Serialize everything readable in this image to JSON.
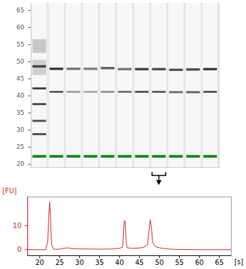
{
  "chart_data": [
    {
      "type": "gel",
      "ylim": [
        19,
        67
      ],
      "yticks": [
        20,
        25,
        30,
        35,
        40,
        45,
        50,
        55,
        60,
        65
      ],
      "color": "#222222",
      "lanes": [
        {
          "bands": [
            {
              "y1": 52.5,
              "y2": 56.5,
              "intensity": 0.22
            },
            {
              "y1": 46.0,
              "y2": 50.5,
              "intensity": 0.18
            },
            {
              "y1": 48.2,
              "y2": 48.9,
              "intensity": 0.8
            },
            {
              "y1": 41.8,
              "y2": 42.4,
              "intensity": 0.85
            },
            {
              "y1": 37.2,
              "y2": 37.8,
              "intensity": 0.8
            },
            {
              "y1": 32.3,
              "y2": 32.9,
              "intensity": 0.8
            },
            {
              "y1": 28.4,
              "y2": 29.0,
              "intensity": 0.8
            },
            {
              "y1": 21.8,
              "y2": 22.6,
              "intensity": 1,
              "color": "#1a8c1a"
            }
          ]
        },
        {
          "bands": [
            {
              "y1": 47.5,
              "y2": 48.2,
              "intensity": 0.9
            },
            {
              "y1": 40.8,
              "y2": 41.4,
              "intensity": 0.7
            },
            {
              "y1": 21.8,
              "y2": 22.6,
              "intensity": 1,
              "color": "#1a8c1a"
            }
          ]
        },
        {
          "bands": [
            {
              "y1": 47.5,
              "y2": 48.2,
              "intensity": 0.6
            },
            {
              "y1": 40.8,
              "y2": 41.4,
              "intensity": 0.4
            },
            {
              "y1": 21.8,
              "y2": 22.6,
              "intensity": 1,
              "color": "#1a8c1a"
            }
          ]
        },
        {
          "bands": [
            {
              "y1": 47.5,
              "y2": 48.2,
              "intensity": 0.55
            },
            {
              "y1": 40.8,
              "y2": 41.4,
              "intensity": 0.35
            },
            {
              "y1": 21.8,
              "y2": 22.6,
              "intensity": 1,
              "color": "#1a8c1a"
            }
          ]
        },
        {
          "bands": [
            {
              "y1": 47.7,
              "y2": 48.4,
              "intensity": 0.7
            },
            {
              "y1": 40.8,
              "y2": 41.4,
              "intensity": 0.45
            },
            {
              "y1": 21.8,
              "y2": 22.6,
              "intensity": 1,
              "color": "#1a8c1a"
            }
          ]
        },
        {
          "bands": [
            {
              "y1": 47.4,
              "y2": 48.1,
              "intensity": 0.6
            },
            {
              "y1": 40.8,
              "y2": 41.4,
              "intensity": 0.6
            },
            {
              "y1": 21.8,
              "y2": 22.6,
              "intensity": 1,
              "color": "#1a8c1a"
            }
          ]
        },
        {
          "bands": [
            {
              "y1": 47.4,
              "y2": 48.1,
              "intensity": 0.85
            },
            {
              "y1": 40.8,
              "y2": 41.4,
              "intensity": 0.75
            },
            {
              "y1": 21.8,
              "y2": 22.6,
              "intensity": 1,
              "color": "#1a8c1a"
            }
          ]
        },
        {
          "bands": [
            {
              "y1": 47.4,
              "y2": 48.1,
              "intensity": 0.8
            },
            {
              "y1": 40.8,
              "y2": 41.4,
              "intensity": 0.7
            },
            {
              "y1": 21.8,
              "y2": 22.6,
              "intensity": 1,
              "color": "#1a8c1a"
            }
          ]
        },
        {
          "bands": [
            {
              "y1": 47.2,
              "y2": 47.9,
              "intensity": 0.75
            },
            {
              "y1": 40.7,
              "y2": 41.3,
              "intensity": 0.65
            },
            {
              "y1": 21.8,
              "y2": 22.6,
              "intensity": 1,
              "color": "#1a8c1a"
            }
          ]
        },
        {
          "bands": [
            {
              "y1": 47.3,
              "y2": 48.0,
              "intensity": 0.8
            },
            {
              "y1": 40.7,
              "y2": 41.3,
              "intensity": 0.7
            },
            {
              "y1": 21.8,
              "y2": 22.6,
              "intensity": 1,
              "color": "#1a8c1a"
            }
          ]
        },
        {
          "bands": [
            {
              "y1": 47.4,
              "y2": 48.1,
              "intensity": 0.9
            },
            {
              "y1": 40.8,
              "y2": 41.4,
              "intensity": 0.75
            },
            {
              "y1": 21.8,
              "y2": 22.6,
              "intensity": 1,
              "color": "#1a8c1a"
            }
          ]
        }
      ]
    },
    {
      "type": "line",
      "xlabel": "[s]",
      "ylabel": "[FU]",
      "xlim": [
        17,
        68
      ],
      "xticks": [
        20,
        25,
        30,
        35,
        40,
        45,
        50,
        55,
        60,
        65
      ],
      "ylim": [
        -2.5,
        22
      ],
      "yticks": [
        0,
        10
      ],
      "color": "#d02020",
      "x": [
        17,
        20,
        21.5,
        22,
        22.3,
        22.5,
        22.7,
        23,
        23.5,
        25,
        26,
        27,
        28,
        30,
        32,
        35,
        38,
        40,
        40.8,
        41.0,
        41.2,
        41.4,
        41.6,
        41.9,
        43,
        45,
        46,
        47,
        47.4,
        47.7,
        48,
        48.3,
        49,
        50,
        51,
        53,
        55,
        60,
        65,
        68
      ],
      "values": [
        0,
        0,
        0,
        3,
        14,
        20,
        14,
        2,
        0.2,
        0.2,
        0.6,
        0.8,
        0.5,
        0.3,
        0.3,
        0.2,
        0.3,
        0.6,
        1,
        8,
        12,
        12,
        5,
        0.8,
        0.6,
        0.7,
        1,
        2,
        8,
        12.5,
        9,
        3,
        1.2,
        0.8,
        0.5,
        0.2,
        0.1,
        0,
        0,
        0
      ]
    }
  ]
}
